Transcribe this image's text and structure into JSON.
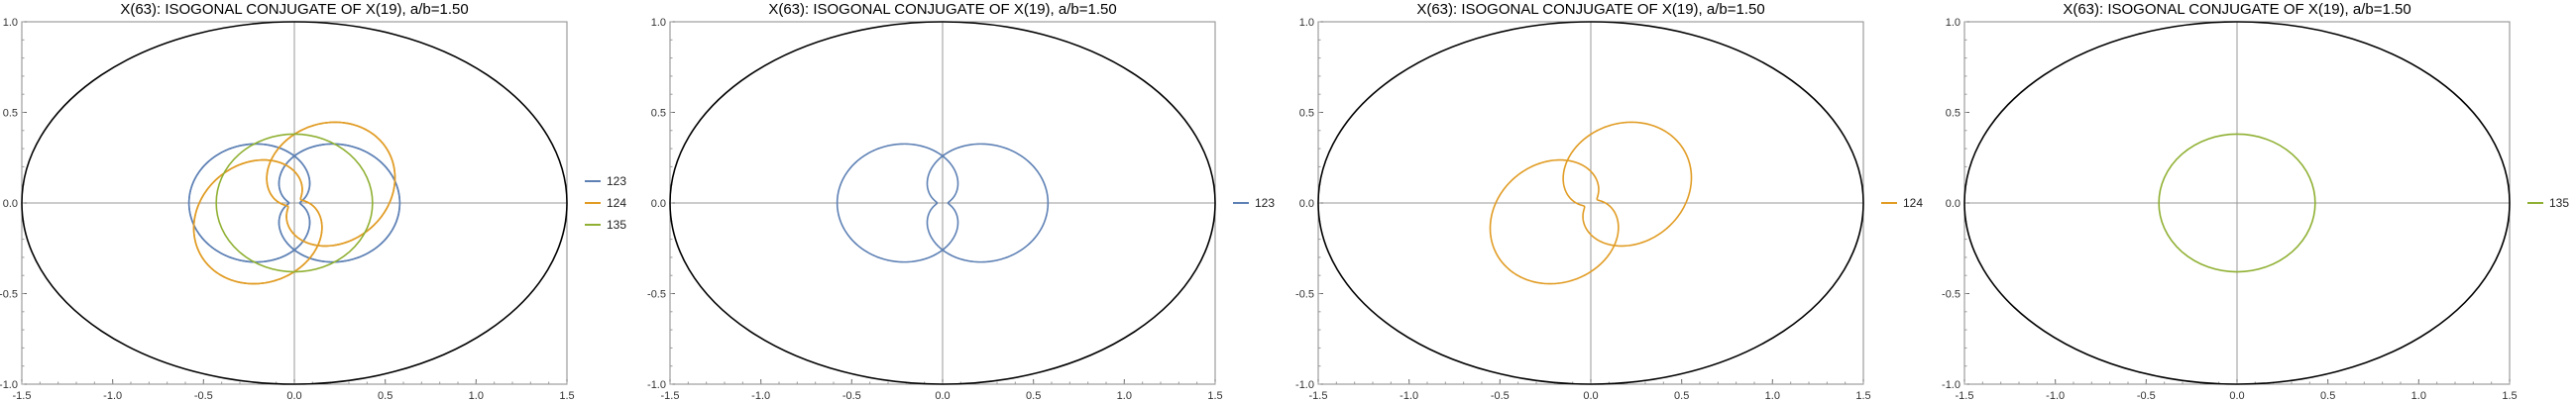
{
  "chart_data": [
    {
      "type": "line",
      "title": "X(63): ISOGONAL CONJUGATE OF X(19), a/b=1.50",
      "xlim": [
        -1.5,
        1.5
      ],
      "ylim": [
        -1.0,
        1.0
      ],
      "xticks": [
        "-1.5",
        "-1.0",
        "-0.5",
        "0.0",
        "0.5",
        "1.0",
        "1.5"
      ],
      "yticks": [
        "1.0",
        "0.5",
        "0.0",
        "-0.5",
        "-1.0"
      ],
      "grid": false,
      "legend": "right",
      "ellipse": {
        "a": 1.5,
        "b": 1.0,
        "color": "#000000"
      },
      "series": [
        {
          "name": "123",
          "color": "#5e81b5",
          "shape": "bilobe-x",
          "cx": 0.0,
          "cy": 0.0,
          "r": 0.8
        },
        {
          "name": "123",
          "color": "#5e81b5",
          "shape": "bilobe-y",
          "cx": 0.0,
          "cy": 0.0,
          "r": 0.8
        },
        {
          "name": "124",
          "color": "#e19c24",
          "shape": "bilobe-diag",
          "cx": 0.0,
          "cy": 0.0,
          "r": 0.8
        },
        {
          "name": "124",
          "color": "#e19c24",
          "shape": "bilobe-diag2",
          "cx": 0.0,
          "cy": 0.0,
          "r": 0.8
        },
        {
          "name": "135",
          "color": "#8fb032",
          "shape": "circle",
          "cx": 0.0,
          "cy": 0.0,
          "rx": 0.43,
          "ry": 0.38
        }
      ],
      "legend_items": [
        {
          "label": "123",
          "color": "#5e81b5"
        },
        {
          "label": "124",
          "color": "#e19c24"
        },
        {
          "label": "135",
          "color": "#8fb032"
        }
      ]
    },
    {
      "type": "line",
      "title": "X(63): ISOGONAL CONJUGATE OF X(19), a/b=1.50",
      "xlim": [
        -1.5,
        1.5
      ],
      "ylim": [
        -1.0,
        1.0
      ],
      "xticks": [
        "-1.5",
        "-1.0",
        "-0.5",
        "0.0",
        "0.5",
        "1.0",
        "1.5"
      ],
      "yticks": [
        "1.0",
        "0.5",
        "0.0",
        "-0.5",
        "-1.0"
      ],
      "grid": false,
      "legend": "right",
      "ellipse": {
        "a": 1.5,
        "b": 1.0,
        "color": "#000000"
      },
      "series": [
        {
          "name": "123",
          "color": "#5e81b5",
          "shape": "limacon-pair"
        }
      ],
      "legend_items": [
        {
          "label": "123",
          "color": "#5e81b5"
        }
      ]
    },
    {
      "type": "line",
      "title": "X(63): ISOGONAL CONJUGATE OF X(19), a/b=1.50",
      "xlim": [
        -1.5,
        1.5
      ],
      "ylim": [
        -1.0,
        1.0
      ],
      "xticks": [
        "-1.5",
        "-1.0",
        "-0.5",
        "0.0",
        "0.5",
        "1.0",
        "1.5"
      ],
      "yticks": [
        "1.0",
        "0.5",
        "0.0",
        "-0.5",
        "-1.0"
      ],
      "grid": false,
      "legend": "right",
      "ellipse": {
        "a": 1.5,
        "b": 1.0,
        "color": "#000000"
      },
      "series": [
        {
          "name": "124",
          "color": "#e19c24",
          "shape": "limacon-pair-diag"
        }
      ],
      "legend_items": [
        {
          "label": "124",
          "color": "#e19c24"
        }
      ]
    },
    {
      "type": "line",
      "title": "X(63): ISOGONAL CONJUGATE OF X(19), a/b=1.50",
      "xlim": [
        -1.5,
        1.5
      ],
      "ylim": [
        -1.0,
        1.0
      ],
      "xticks": [
        "-1.5",
        "-1.0",
        "-0.5",
        "0.0",
        "0.5",
        "1.0",
        "1.5"
      ],
      "yticks": [
        "1.0",
        "0.5",
        "0.0",
        "-0.5",
        "-1.0"
      ],
      "grid": false,
      "legend": "right",
      "ellipse": {
        "a": 1.5,
        "b": 1.0,
        "color": "#000000"
      },
      "series": [
        {
          "name": "135",
          "color": "#8fb032",
          "shape": "circle",
          "cx": 0.0,
          "cy": 0.0,
          "rx": 0.43,
          "ry": 0.38
        }
      ],
      "legend_items": [
        {
          "label": "135",
          "color": "#8fb032"
        }
      ]
    }
  ]
}
